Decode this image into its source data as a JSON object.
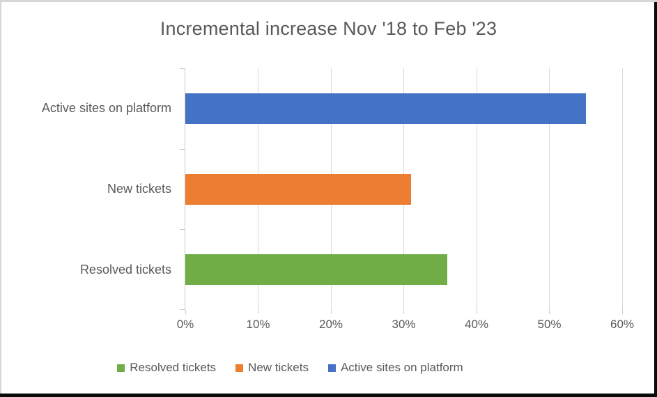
{
  "chart_data": {
    "type": "bar",
    "orientation": "horizontal",
    "title": "Incremental increase Nov '18 to Feb '23",
    "categories": [
      "Active sites on platform",
      "New tickets",
      "Resolved tickets"
    ],
    "values": [
      55,
      31,
      36
    ],
    "colors": [
      "#4472C4",
      "#ED7D31",
      "#70AD47"
    ],
    "xlim": [
      0,
      60
    ],
    "x_tick_labels": [
      "0%",
      "10%",
      "20%",
      "30%",
      "40%",
      "50%",
      "60%"
    ],
    "grid": "vertical",
    "legend_position": "bottom",
    "legend": [
      {
        "label": "Resolved tickets",
        "color": "#70AD47"
      },
      {
        "label": "New tickets",
        "color": "#ED7D31"
      },
      {
        "label": "Active sites on platform",
        "color": "#4472C4"
      }
    ],
    "style": {
      "text_color": "#595959",
      "gridline_color": "#D9D9D9",
      "axis_color": "#C9C9C9"
    }
  }
}
